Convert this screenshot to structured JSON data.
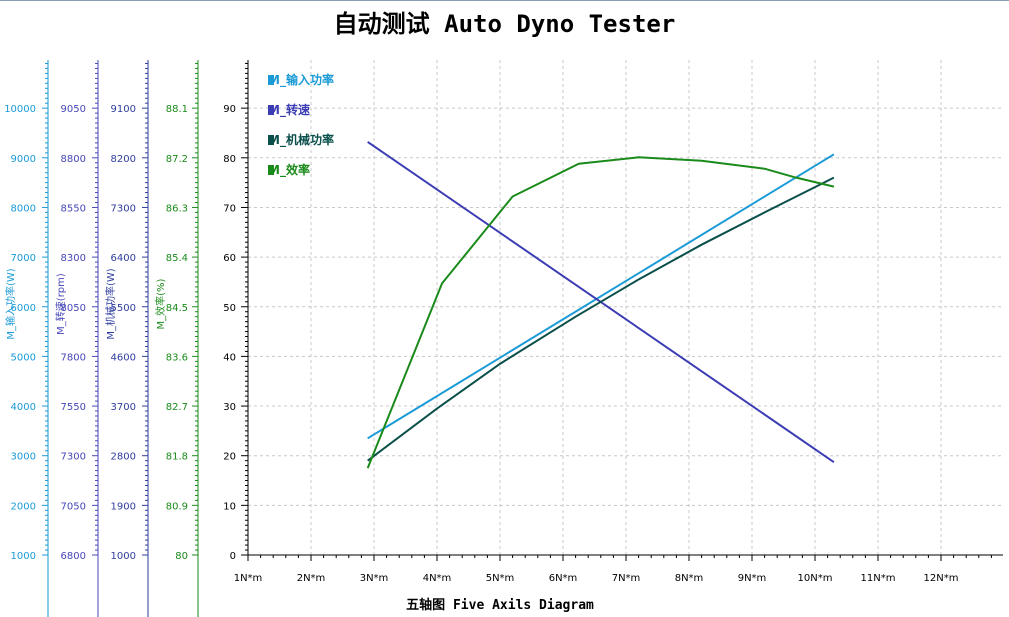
{
  "title": "自动测试 Auto Dyno Tester",
  "subtitle": "五轴图 Five Axils Diagram",
  "chart_data": {
    "type": "line",
    "title": "自动测试 Auto Dyno Tester",
    "subtitle": "五轴图 Five Axils Diagram",
    "grid": true,
    "legend_position": "top-left",
    "x_axis": {
      "ticks": [
        "1N*m",
        "2N*m",
        "3N*m",
        "4N*m",
        "5N*m",
        "6N*m",
        "7N*m",
        "8N*m",
        "9N*m",
        "10N*m",
        "11N*m",
        "12N*m"
      ],
      "range": [
        1,
        13
      ]
    },
    "y_axes": [
      {
        "key": "main",
        "label": "",
        "color": "#000000",
        "ticks": [
          "0",
          "10",
          "20",
          "30",
          "40",
          "50",
          "60",
          "70",
          "80",
          "90"
        ],
        "range": [
          0,
          100
        ]
      },
      {
        "key": "efficiency",
        "label": "M_效率(%)",
        "color": "#1a8a1a",
        "ticks": [
          "80",
          "80.9",
          "81.8",
          "82.7",
          "83.6",
          "84.5",
          "85.4",
          "86.3",
          "87.2",
          "88.1"
        ],
        "range": [
          80,
          89
        ]
      },
      {
        "key": "mech_power",
        "label": "M_机械功率(W)",
        "color": "#2e3d9e",
        "ticks": [
          "1000",
          "1900",
          "2800",
          "3700",
          "4600",
          "5500",
          "6400",
          "7300",
          "8200",
          "9100"
        ],
        "range": [
          1000,
          10000
        ]
      },
      {
        "key": "speed",
        "label": "M_转速(rpm)",
        "color": "#4747b8",
        "ticks": [
          "6800",
          "7050",
          "7300",
          "7550",
          "7800",
          "8050",
          "8300",
          "8550",
          "8800",
          "9050"
        ],
        "range": [
          6800,
          9300
        ]
      },
      {
        "key": "input_power",
        "label": "M_输入功率(W)",
        "color": "#1a9ad6",
        "ticks": [
          "1000",
          "2000",
          "3000",
          "4000",
          "5000",
          "6000",
          "7000",
          "8000",
          "9000",
          "10000"
        ],
        "range": [
          1000,
          11000
        ]
      }
    ],
    "series": [
      {
        "name": "M_输入功率",
        "color": "#1a9ad6",
        "x": [
          2.9,
          10.3
        ],
        "y": [
          23.5,
          80.7
        ]
      },
      {
        "name": "M_转速",
        "color": "#3c3cb4",
        "x": [
          2.9,
          10.3
        ],
        "y": [
          83.2,
          18.7
        ]
      },
      {
        "name": "M_机械功率",
        "color": "#0a4f4a",
        "x": [
          2.9,
          4.0,
          5.0,
          6.2,
          7.2,
          8.2,
          9.2,
          10.3
        ],
        "y": [
          19.0,
          29.5,
          38.5,
          48.0,
          55.5,
          62.5,
          69.0,
          76.0
        ]
      },
      {
        "name": "M_效率",
        "color": "#1a8a1a",
        "x": [
          2.9,
          4.08,
          5.2,
          6.25,
          7.2,
          8.2,
          9.2,
          9.7,
          10.3
        ],
        "y": [
          17.5,
          54.7,
          72.2,
          78.8,
          80.1,
          79.4,
          77.8,
          76.0,
          74.2
        ]
      }
    ]
  }
}
